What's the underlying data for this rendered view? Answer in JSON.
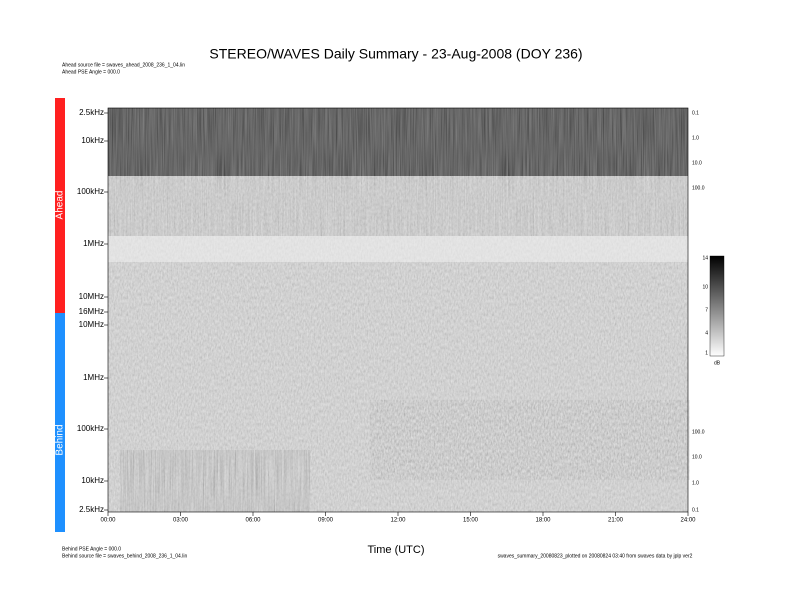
{
  "title": "STEREO/WAVES Daily Summary - 23-Aug-2008 (DOY 236)",
  "header_notes": [
    "Ahead source file = swaves_ahead_2008_236_1_04.lin",
    "Ahead PSE Angle = 000.0"
  ],
  "spacecraft_labels": [
    "Ahead",
    "Behind"
  ],
  "frequency_ticks": [
    "2.5kHz",
    "10kHz",
    "100kHz",
    "1MHz",
    "10MHz",
    "16MHz",
    "10MHz",
    "1MHz",
    "100kHz",
    "10kHz",
    "2.5kHz"
  ],
  "right_ticks": [
    "0.1",
    "1.0",
    "10.0",
    "100.0",
    "100.0",
    "10.0",
    "1.0",
    "0.1"
  ],
  "time_ticks": [
    "00:00",
    "03:00",
    "06:00",
    "09:00",
    "12:00",
    "15:00",
    "18:00",
    "21:00",
    "24:00"
  ],
  "colorbar": {
    "ticks": [
      14,
      10,
      7,
      4,
      1
    ],
    "unit": "dB"
  },
  "x_axis_label": "Time (UTC)",
  "footer_notes": [
    "Behind PSE Angle = 000.0",
    "Behind source file = swaves_behind_2008_236_1_04.lin"
  ],
  "footer_right": "swaves_summary_20080823_plotted on 20080824 03:40 from swaves data by jplp ver2"
}
